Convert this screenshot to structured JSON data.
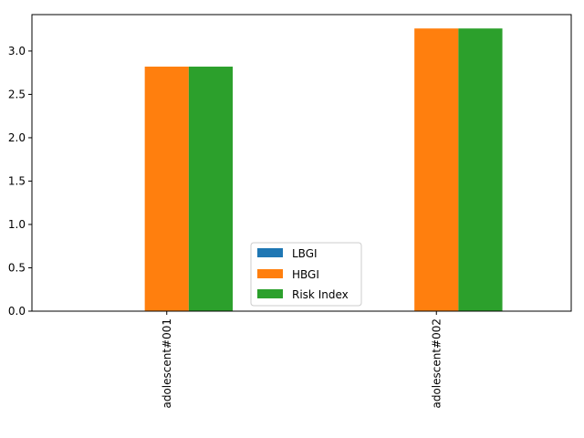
{
  "chart_data": {
    "type": "bar",
    "title": "",
    "xlabel": "",
    "ylabel": "",
    "categories": [
      "adolescent#001",
      "adolescent#002"
    ],
    "series": [
      {
        "name": "LBGI",
        "values": [
          0.0,
          0.0
        ],
        "color": "#1f77b4"
      },
      {
        "name": "HBGI",
        "values": [
          2.82,
          3.26
        ],
        "color": "#ff7f0e"
      },
      {
        "name": "Risk Index",
        "values": [
          2.82,
          3.26
        ],
        "color": "#2ca02c"
      }
    ],
    "ylim": [
      0,
      3.42
    ],
    "yticks": [
      0.0,
      0.5,
      1.0,
      1.5,
      2.0,
      2.5,
      3.0
    ],
    "ytick_labels": [
      "0.0",
      "0.5",
      "1.0",
      "1.5",
      "2.0",
      "2.5",
      "3.0"
    ],
    "grid": false,
    "legend_position": "lower-center",
    "xtick_rotation": "vertical"
  }
}
